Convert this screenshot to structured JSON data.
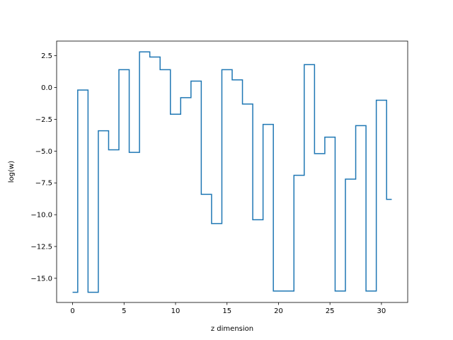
{
  "chart_data": {
    "type": "line",
    "drawstyle": "steps-mid",
    "title": "",
    "xlabel": "z dimension",
    "ylabel": "log(w)",
    "xlim": [
      -1.55,
      32.55
    ],
    "ylim": [
      -16.9,
      3.65
    ],
    "grid": false,
    "line_color": "#1f77b4",
    "xticks": [
      0,
      5,
      10,
      15,
      20,
      25,
      30
    ],
    "xtick_labels": [
      "0",
      "5",
      "10",
      "15",
      "20",
      "25",
      "30"
    ],
    "yticks": [
      2.5,
      0.0,
      -2.5,
      -5.0,
      -7.5,
      -10.0,
      -12.5,
      -15.0
    ],
    "ytick_labels": [
      "2.5",
      "0.0",
      "−2.5",
      "−5.0",
      "−7.5",
      "−10.0",
      "−12.5",
      "−15.0"
    ],
    "series": [
      {
        "x": [
          0,
          1,
          2,
          3,
          4,
          5,
          6,
          7,
          8,
          9,
          10,
          11,
          12,
          13,
          14,
          15,
          16,
          17,
          18,
          19,
          20,
          21,
          22,
          23,
          24,
          25,
          26,
          27,
          28,
          29,
          30,
          31
        ],
        "values": [
          -16.1,
          -0.2,
          -16.1,
          -3.4,
          -4.9,
          1.4,
          -5.1,
          2.8,
          2.4,
          1.4,
          -2.1,
          -0.8,
          0.5,
          -8.4,
          -10.7,
          1.4,
          0.6,
          -1.3,
          -10.4,
          -2.9,
          -16.0,
          -16.0,
          -6.9,
          1.8,
          -5.2,
          -3.9,
          -16.0,
          -7.2,
          -3.0,
          -16.0,
          -1.0,
          -8.8
        ]
      }
    ]
  }
}
